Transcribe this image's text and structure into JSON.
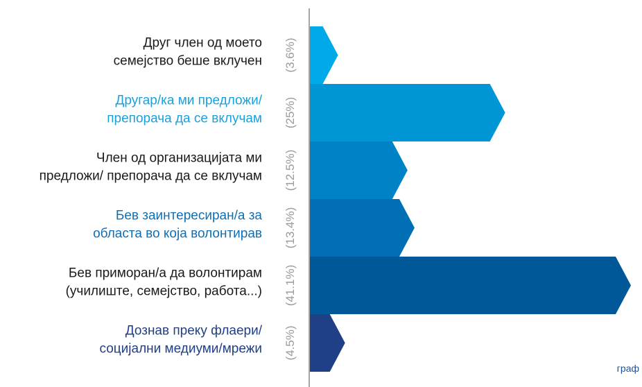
{
  "chart_data": {
    "type": "bar",
    "orientation": "horizontal",
    "categories": [
      [
        "Друг член од моето",
        "семејство беше вклучен"
      ],
      [
        "Другар/ка ми предложи/",
        "препорача да се вклучам"
      ],
      [
        "Член од организацијата ми",
        "предложи/ препорача да се вклучам"
      ],
      [
        "Бев заинтересиран/а за",
        "областа во која волонтирав"
      ],
      [
        "Бев приморан/а да волонтирам",
        "(училиште, семејство, работа...)"
      ],
      [
        "Дознав преку флаери/",
        "социјални медиуми/мрежи"
      ]
    ],
    "values": [
      3.6,
      25,
      12.5,
      13.4,
      41.1,
      4.5
    ],
    "value_labels": [
      "(3.6%)",
      "(25%)",
      "(12.5%)",
      "(13.4%)",
      "(41.1%)",
      "(4.5%)"
    ],
    "xlim": [
      0,
      41.1
    ],
    "grid": false
  },
  "colors": {
    "bars": [
      "#00a9e8",
      "#0096d6",
      "#0082c6",
      "#006fb4",
      "#005899",
      "#1f3f86"
    ],
    "labels": [
      "#1a1a1a",
      "#1aa0dc",
      "#1a1a1a",
      "#0f6fb5",
      "#1a1a1a",
      "#1f3f86"
    ],
    "axis": "#a6a6a6",
    "pct": "#9a9a9a"
  },
  "footer": {
    "text": "граф",
    "color": "#1f4f9a"
  }
}
